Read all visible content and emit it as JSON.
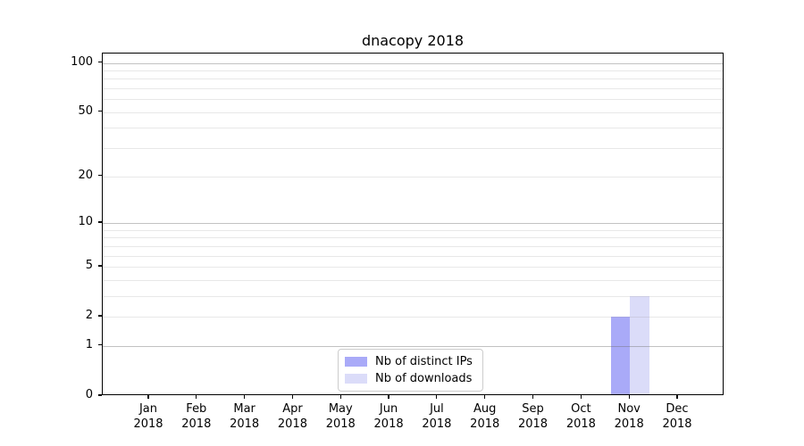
{
  "title": "dnacopy 2018",
  "chart_data": {
    "type": "bar",
    "title": "dnacopy 2018",
    "categories": [
      "Jan 2018",
      "Feb 2018",
      "Mar 2018",
      "Apr 2018",
      "May 2018",
      "Jun 2018",
      "Jul 2018",
      "Aug 2018",
      "Sep 2018",
      "Oct 2018",
      "Nov 2018",
      "Dec 2018"
    ],
    "months": [
      "Jan",
      "Feb",
      "Mar",
      "Apr",
      "May",
      "Jun",
      "Jul",
      "Aug",
      "Sep",
      "Oct",
      "Nov",
      "Dec"
    ],
    "year_label": "2018",
    "series": [
      {
        "name": "Nb of distinct IPs",
        "color": "#a9aaf8",
        "values": [
          0,
          0,
          0,
          0,
          0,
          0,
          0,
          0,
          0,
          0,
          2,
          0
        ]
      },
      {
        "name": "Nb of downloads",
        "color": "#dbdcf9",
        "values": [
          0,
          0,
          0,
          0,
          0,
          0,
          0,
          0,
          0,
          0,
          3,
          0
        ]
      }
    ],
    "xlabel": "",
    "ylabel": "",
    "y_scale": "log1p",
    "ylim": [
      0,
      114
    ],
    "y_ticks_labeled": [
      0,
      1,
      2,
      5,
      10,
      20,
      50,
      100
    ],
    "y_gridlines_major": [
      1,
      10,
      100
    ],
    "y_gridlines_minor": [
      2,
      3,
      4,
      5,
      6,
      7,
      8,
      9,
      20,
      30,
      40,
      50,
      60,
      70,
      80,
      90
    ],
    "grid": true,
    "legend": {
      "position": "inside-bottom-center",
      "entries": [
        "Nb of distinct IPs",
        "Nb of downloads"
      ]
    }
  },
  "colors": {
    "background": "#ffffff",
    "spine": "#000000",
    "grid_major": "rgba(110,110,110,0.42)",
    "grid_minor": "rgba(150,150,150,0.22)",
    "legend_border": "#cccccc",
    "text": "#000000"
  }
}
